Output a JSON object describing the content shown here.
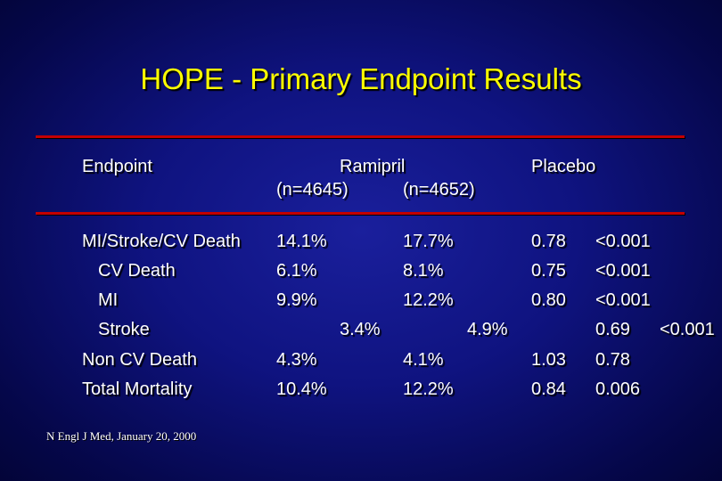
{
  "slide": {
    "title": "HOPE - Primary Endpoint Results",
    "source": "N Engl J Med, January 20, 2000"
  },
  "colors": {
    "title": "#ffff00",
    "rule": "#c40000",
    "text": "#ffffff",
    "background": "#0f1380"
  },
  "table": {
    "header": {
      "endpoint": "Endpoint",
      "ramipril": "Ramipril",
      "ramipril_n": "(n=4645)",
      "placebo_n": "(n=4652)",
      "placebo": "Placebo"
    },
    "rows": [
      {
        "endpoint": "MI/Stroke/CV Death",
        "ramipril": "14.1%",
        "placebo": "17.7%",
        "rr": "0.78",
        "p": "<0.001"
      },
      {
        "endpoint": "CV Death",
        "ramipril": "6.1%",
        "placebo": "8.1%",
        "rr": "0.75",
        "p": "<0.001"
      },
      {
        "endpoint": "MI",
        "ramipril": "9.9%",
        "placebo": "12.2%",
        "rr": "0.80",
        "p": "<0.001"
      },
      {
        "endpoint": "Stroke",
        "ramipril": "3.4%",
        "placebo": "4.9%",
        "rr": "0.69",
        "p": "<0.001"
      },
      {
        "endpoint": "Non CV Death",
        "ramipril": "4.3%",
        "placebo": "4.1%",
        "rr": "1.03",
        "p": "0.78"
      },
      {
        "endpoint": "Total Mortality",
        "ramipril": "10.4%",
        "placebo": "12.2%",
        "rr": "0.84",
        "p": "0.006"
      }
    ]
  }
}
